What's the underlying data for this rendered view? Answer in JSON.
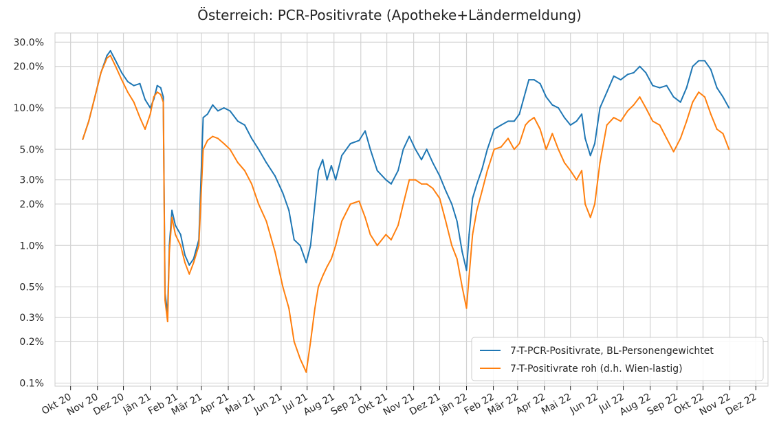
{
  "chart_data": {
    "type": "line",
    "title": "Österreich: PCR-Positivrate (Apotheke+Ländermeldung)",
    "xlabel": "",
    "ylabel": "",
    "y_scale": "log",
    "ylim": [
      0.095,
      35
    ],
    "y_ticks": [
      {
        "value": 0.1,
        "label": "0.1%"
      },
      {
        "value": 0.2,
        "label": "0.2%"
      },
      {
        "value": 0.3,
        "label": "0.3%"
      },
      {
        "value": 0.5,
        "label": "0.5%"
      },
      {
        "value": 1,
        "label": "1.0%"
      },
      {
        "value": 2,
        "label": "2.0%"
      },
      {
        "value": 3,
        "label": "3.0%"
      },
      {
        "value": 5,
        "label": "5.0%"
      },
      {
        "value": 10,
        "label": "10.0%"
      },
      {
        "value": 20,
        "label": "20.0%"
      },
      {
        "value": 30,
        "label": "30.0%"
      }
    ],
    "x_ticks": [
      {
        "date": "2020-10-01",
        "label": "Okt 20"
      },
      {
        "date": "2020-11-01",
        "label": "Nov 20"
      },
      {
        "date": "2020-12-01",
        "label": "Dez 20"
      },
      {
        "date": "2021-01-01",
        "label": "Jän 21"
      },
      {
        "date": "2021-02-01",
        "label": "Feb 21"
      },
      {
        "date": "2021-03-01",
        "label": "Mär 21"
      },
      {
        "date": "2021-04-01",
        "label": "Apr 21"
      },
      {
        "date": "2021-05-01",
        "label": "Mai 21"
      },
      {
        "date": "2021-06-01",
        "label": "Jun 21"
      },
      {
        "date": "2021-07-01",
        "label": "Jul 21"
      },
      {
        "date": "2021-08-01",
        "label": "Aug 21"
      },
      {
        "date": "2021-09-01",
        "label": "Sep 21"
      },
      {
        "date": "2021-10-01",
        "label": "Okt 21"
      },
      {
        "date": "2021-11-01",
        "label": "Nov 21"
      },
      {
        "date": "2021-12-01",
        "label": "Dez 21"
      },
      {
        "date": "2022-01-01",
        "label": "Jän 22"
      },
      {
        "date": "2022-02-01",
        "label": "Feb 22"
      },
      {
        "date": "2022-03-01",
        "label": "Mär 22"
      },
      {
        "date": "2022-04-01",
        "label": "Apr 22"
      },
      {
        "date": "2022-05-01",
        "label": "Mai 22"
      },
      {
        "date": "2022-06-01",
        "label": "Jun 22"
      },
      {
        "date": "2022-07-01",
        "label": "Jul 22"
      },
      {
        "date": "2022-08-01",
        "label": "Aug 22"
      },
      {
        "date": "2022-09-01",
        "label": "Sep 22"
      },
      {
        "date": "2022-10-01",
        "label": "Okt 22"
      },
      {
        "date": "2022-11-01",
        "label": "Nov 22"
      },
      {
        "date": "2022-12-01",
        "label": "Dez 22"
      }
    ],
    "grid": true,
    "legend_position": "lower-right",
    "series": [
      {
        "name": "7-T-PCR-Positivrate, BL-Personengewichtet",
        "color": "#1f77b4",
        "points": [
          [
            "2020-10-15",
            5.9
          ],
          [
            "2020-10-22",
            8.0
          ],
          [
            "2020-10-29",
            12.0
          ],
          [
            "2020-11-05",
            18.0
          ],
          [
            "2020-11-12",
            24.0
          ],
          [
            "2020-11-16",
            26.0
          ],
          [
            "2020-11-22",
            22.0
          ],
          [
            "2020-11-29",
            18.0
          ],
          [
            "2020-12-06",
            15.5
          ],
          [
            "2020-12-13",
            14.5
          ],
          [
            "2020-12-20",
            15.0
          ],
          [
            "2020-12-26",
            11.5
          ],
          [
            "2021-01-01",
            10.0
          ],
          [
            "2021-01-05",
            11.5
          ],
          [
            "2021-01-09",
            14.5
          ],
          [
            "2021-01-13",
            14.0
          ],
          [
            "2021-01-16",
            12.0
          ],
          [
            "2021-01-18",
            0.45
          ],
          [
            "2021-01-21",
            0.32
          ],
          [
            "2021-01-23",
            1.0
          ],
          [
            "2021-01-26",
            1.8
          ],
          [
            "2021-01-30",
            1.4
          ],
          [
            "2021-02-05",
            1.2
          ],
          [
            "2021-02-10",
            0.85
          ],
          [
            "2021-02-15",
            0.72
          ],
          [
            "2021-02-20",
            0.8
          ],
          [
            "2021-02-26",
            1.1
          ],
          [
            "2021-03-03",
            8.5
          ],
          [
            "2021-03-08",
            9.0
          ],
          [
            "2021-03-14",
            10.5
          ],
          [
            "2021-03-20",
            9.5
          ],
          [
            "2021-03-27",
            10.0
          ],
          [
            "2021-04-03",
            9.5
          ],
          [
            "2021-04-12",
            8.0
          ],
          [
            "2021-04-20",
            7.5
          ],
          [
            "2021-04-28",
            6.0
          ],
          [
            "2021-05-06",
            5.0
          ],
          [
            "2021-05-15",
            4.0
          ],
          [
            "2021-05-25",
            3.2
          ],
          [
            "2021-06-03",
            2.4
          ],
          [
            "2021-06-10",
            1.8
          ],
          [
            "2021-06-16",
            1.1
          ],
          [
            "2021-06-23",
            1.0
          ],
          [
            "2021-06-30",
            0.75
          ],
          [
            "2021-07-05",
            1.0
          ],
          [
            "2021-07-10",
            2.0
          ],
          [
            "2021-07-14",
            3.5
          ],
          [
            "2021-07-19",
            4.2
          ],
          [
            "2021-07-24",
            3.0
          ],
          [
            "2021-07-29",
            3.8
          ],
          [
            "2021-08-03",
            3.0
          ],
          [
            "2021-08-10",
            4.5
          ],
          [
            "2021-08-20",
            5.5
          ],
          [
            "2021-08-30",
            5.8
          ],
          [
            "2021-09-06",
            6.8
          ],
          [
            "2021-09-12",
            5.0
          ],
          [
            "2021-09-20",
            3.5
          ],
          [
            "2021-09-30",
            3.0
          ],
          [
            "2021-10-06",
            2.8
          ],
          [
            "2021-10-14",
            3.5
          ],
          [
            "2021-10-20",
            5.0
          ],
          [
            "2021-10-27",
            6.2
          ],
          [
            "2021-11-03",
            5.0
          ],
          [
            "2021-11-10",
            4.2
          ],
          [
            "2021-11-16",
            5.0
          ],
          [
            "2021-11-23",
            4.0
          ],
          [
            "2021-12-01",
            3.2
          ],
          [
            "2021-12-08",
            2.5
          ],
          [
            "2021-12-15",
            2.0
          ],
          [
            "2021-12-21",
            1.5
          ],
          [
            "2021-12-27",
            0.9
          ],
          [
            "2022-01-01",
            0.66
          ],
          [
            "2022-01-04",
            1.2
          ],
          [
            "2022-01-08",
            2.2
          ],
          [
            "2022-01-13",
            2.8
          ],
          [
            "2022-01-19",
            3.6
          ],
          [
            "2022-01-25",
            5.0
          ],
          [
            "2022-02-02",
            7.0
          ],
          [
            "2022-02-10",
            7.5
          ],
          [
            "2022-02-18",
            8.0
          ],
          [
            "2022-02-25",
            8.0
          ],
          [
            "2022-03-03",
            9.0
          ],
          [
            "2022-03-10",
            13.0
          ],
          [
            "2022-03-14",
            16.0
          ],
          [
            "2022-03-20",
            16.0
          ],
          [
            "2022-03-27",
            15.0
          ],
          [
            "2022-04-03",
            12.0
          ],
          [
            "2022-04-10",
            10.5
          ],
          [
            "2022-04-17",
            10.0
          ],
          [
            "2022-04-24",
            8.5
          ],
          [
            "2022-05-01",
            7.5
          ],
          [
            "2022-05-08",
            8.0
          ],
          [
            "2022-05-14",
            9.0
          ],
          [
            "2022-05-18",
            6.0
          ],
          [
            "2022-05-24",
            4.5
          ],
          [
            "2022-05-29",
            5.5
          ],
          [
            "2022-06-04",
            10.0
          ],
          [
            "2022-06-12",
            13.0
          ],
          [
            "2022-06-20",
            17.0
          ],
          [
            "2022-06-28",
            16.0
          ],
          [
            "2022-07-06",
            17.5
          ],
          [
            "2022-07-13",
            18.0
          ],
          [
            "2022-07-20",
            20.0
          ],
          [
            "2022-07-27",
            18.0
          ],
          [
            "2022-08-04",
            14.5
          ],
          [
            "2022-08-12",
            14.0
          ],
          [
            "2022-08-20",
            14.5
          ],
          [
            "2022-08-28",
            12.0
          ],
          [
            "2022-09-05",
            11.0
          ],
          [
            "2022-09-12",
            14.0
          ],
          [
            "2022-09-19",
            20.0
          ],
          [
            "2022-09-26",
            22.0
          ],
          [
            "2022-10-03",
            22.0
          ],
          [
            "2022-10-10",
            19.0
          ],
          [
            "2022-10-17",
            14.0
          ],
          [
            "2022-10-24",
            12.0
          ],
          [
            "2022-10-31",
            10.0
          ]
        ]
      },
      {
        "name": "7-T-Positivrate roh (d.h. Wien-lastig)",
        "color": "#ff7f0e",
        "points": [
          [
            "2020-10-15",
            5.9
          ],
          [
            "2020-10-22",
            8.0
          ],
          [
            "2020-10-29",
            12.0
          ],
          [
            "2020-11-05",
            18.0
          ],
          [
            "2020-11-12",
            23.0
          ],
          [
            "2020-11-16",
            24.0
          ],
          [
            "2020-11-22",
            20.0
          ],
          [
            "2020-11-29",
            16.0
          ],
          [
            "2020-12-06",
            13.0
          ],
          [
            "2020-12-13",
            11.0
          ],
          [
            "2020-12-20",
            8.5
          ],
          [
            "2020-12-26",
            7.0
          ],
          [
            "2021-01-01",
            9.0
          ],
          [
            "2021-01-05",
            12.0
          ],
          [
            "2021-01-09",
            13.0
          ],
          [
            "2021-01-13",
            12.5
          ],
          [
            "2021-01-16",
            11.0
          ],
          [
            "2021-01-18",
            0.4
          ],
          [
            "2021-01-21",
            0.28
          ],
          [
            "2021-01-23",
            0.9
          ],
          [
            "2021-01-26",
            1.6
          ],
          [
            "2021-01-30",
            1.2
          ],
          [
            "2021-02-05",
            1.0
          ],
          [
            "2021-02-10",
            0.75
          ],
          [
            "2021-02-15",
            0.62
          ],
          [
            "2021-02-20",
            0.75
          ],
          [
            "2021-02-26",
            1.0
          ],
          [
            "2021-03-03",
            5.0
          ],
          [
            "2021-03-08",
            5.8
          ],
          [
            "2021-03-14",
            6.2
          ],
          [
            "2021-03-20",
            6.0
          ],
          [
            "2021-03-27",
            5.5
          ],
          [
            "2021-04-03",
            5.0
          ],
          [
            "2021-04-12",
            4.0
          ],
          [
            "2021-04-20",
            3.5
          ],
          [
            "2021-04-28",
            2.8
          ],
          [
            "2021-05-06",
            2.0
          ],
          [
            "2021-05-15",
            1.5
          ],
          [
            "2021-05-25",
            0.9
          ],
          [
            "2021-06-03",
            0.5
          ],
          [
            "2021-06-10",
            0.35
          ],
          [
            "2021-06-16",
            0.2
          ],
          [
            "2021-06-23",
            0.15
          ],
          [
            "2021-06-30",
            0.12
          ],
          [
            "2021-07-05",
            0.2
          ],
          [
            "2021-07-10",
            0.35
          ],
          [
            "2021-07-14",
            0.5
          ],
          [
            "2021-07-19",
            0.6
          ],
          [
            "2021-07-24",
            0.7
          ],
          [
            "2021-07-29",
            0.8
          ],
          [
            "2021-08-03",
            1.0
          ],
          [
            "2021-08-10",
            1.5
          ],
          [
            "2021-08-20",
            2.0
          ],
          [
            "2021-08-30",
            2.1
          ],
          [
            "2021-09-06",
            1.6
          ],
          [
            "2021-09-12",
            1.2
          ],
          [
            "2021-09-20",
            1.0
          ],
          [
            "2021-09-30",
            1.2
          ],
          [
            "2021-10-06",
            1.1
          ],
          [
            "2021-10-14",
            1.4
          ],
          [
            "2021-10-20",
            2.0
          ],
          [
            "2021-10-27",
            3.0
          ],
          [
            "2021-11-03",
            3.0
          ],
          [
            "2021-11-10",
            2.8
          ],
          [
            "2021-11-16",
            2.8
          ],
          [
            "2021-11-23",
            2.6
          ],
          [
            "2021-12-01",
            2.2
          ],
          [
            "2021-12-08",
            1.5
          ],
          [
            "2021-12-15",
            1.0
          ],
          [
            "2021-12-21",
            0.8
          ],
          [
            "2021-12-27",
            0.5
          ],
          [
            "2022-01-01",
            0.35
          ],
          [
            "2022-01-04",
            0.6
          ],
          [
            "2022-01-08",
            1.2
          ],
          [
            "2022-01-13",
            1.8
          ],
          [
            "2022-01-19",
            2.5
          ],
          [
            "2022-01-25",
            3.5
          ],
          [
            "2022-02-02",
            5.0
          ],
          [
            "2022-02-10",
            5.2
          ],
          [
            "2022-02-18",
            6.0
          ],
          [
            "2022-02-25",
            5.0
          ],
          [
            "2022-03-03",
            5.5
          ],
          [
            "2022-03-10",
            7.5
          ],
          [
            "2022-03-14",
            8.0
          ],
          [
            "2022-03-20",
            8.5
          ],
          [
            "2022-03-27",
            7.0
          ],
          [
            "2022-04-03",
            5.0
          ],
          [
            "2022-04-10",
            6.5
          ],
          [
            "2022-04-17",
            5.0
          ],
          [
            "2022-04-24",
            4.0
          ],
          [
            "2022-05-01",
            3.5
          ],
          [
            "2022-05-08",
            3.0
          ],
          [
            "2022-05-14",
            3.5
          ],
          [
            "2022-05-18",
            2.0
          ],
          [
            "2022-05-24",
            1.6
          ],
          [
            "2022-05-29",
            2.0
          ],
          [
            "2022-06-04",
            4.0
          ],
          [
            "2022-06-12",
            7.5
          ],
          [
            "2022-06-20",
            8.5
          ],
          [
            "2022-06-28",
            8.0
          ],
          [
            "2022-07-06",
            9.5
          ],
          [
            "2022-07-13",
            10.5
          ],
          [
            "2022-07-20",
            12.0
          ],
          [
            "2022-07-27",
            10.0
          ],
          [
            "2022-08-04",
            8.0
          ],
          [
            "2022-08-12",
            7.5
          ],
          [
            "2022-08-20",
            6.0
          ],
          [
            "2022-08-28",
            4.8
          ],
          [
            "2022-09-05",
            6.0
          ],
          [
            "2022-09-12",
            8.0
          ],
          [
            "2022-09-19",
            11.0
          ],
          [
            "2022-09-26",
            13.0
          ],
          [
            "2022-10-03",
            12.0
          ],
          [
            "2022-10-10",
            9.0
          ],
          [
            "2022-10-17",
            7.0
          ],
          [
            "2022-10-24",
            6.5
          ],
          [
            "2022-10-31",
            5.0
          ]
        ]
      }
    ]
  }
}
